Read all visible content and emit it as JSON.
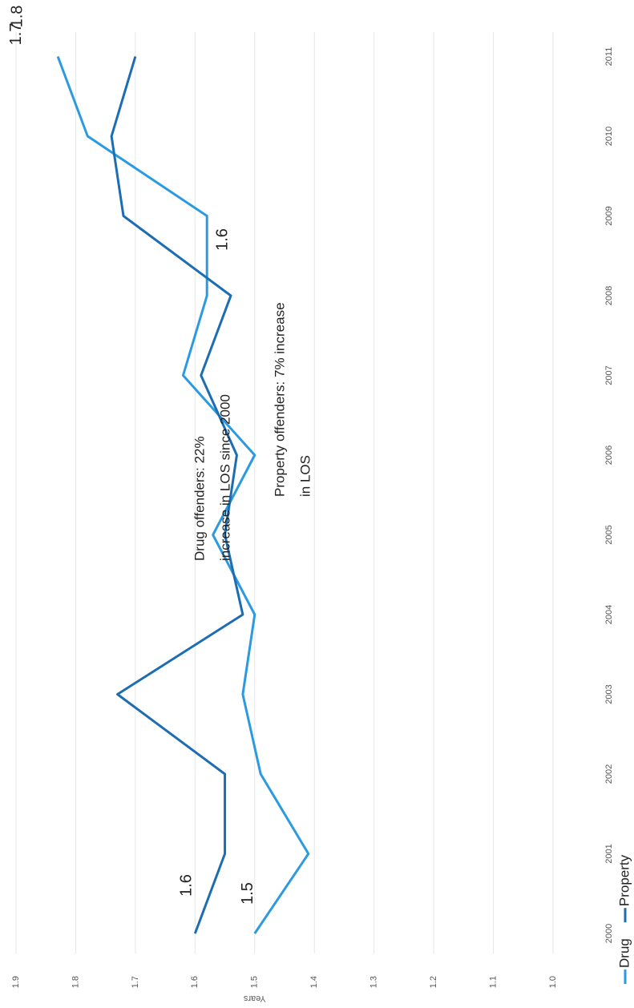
{
  "chart_data": {
    "type": "line",
    "y_label": "Years",
    "categories": [
      "2000",
      "2001",
      "2002",
      "2003",
      "2004",
      "2005",
      "2006",
      "2007",
      "2008",
      "2009",
      "2010",
      "2011"
    ],
    "series": [
      {
        "name": "Drug",
        "color": "#2b9ae0",
        "values": [
          1.5,
          1.41,
          1.49,
          1.52,
          1.5,
          1.57,
          1.5,
          1.62,
          1.58,
          1.58,
          1.78,
          1.83
        ],
        "value_labels": [
          "1.5",
          null,
          null,
          null,
          null,
          null,
          null,
          null,
          "1.6",
          null,
          null,
          "1.8"
        ]
      },
      {
        "name": "Property",
        "color": "#1d6db3",
        "values": [
          1.6,
          1.55,
          1.55,
          1.73,
          1.52,
          1.55,
          1.53,
          1.59,
          1.54,
          1.72,
          1.74,
          1.7
        ],
        "value_labels": [
          "1.6",
          null,
          null,
          null,
          null,
          null,
          null,
          null,
          null,
          null,
          null,
          "1.7"
        ]
      }
    ],
    "ylim": [
      1.0,
      1.9
    ],
    "yticks": [
      {
        "value": 1,
        "label": "1.0"
      },
      1.1,
      1.2,
      1.3,
      1.4,
      1.5,
      1.6,
      1.7,
      1.8,
      1.9
    ],
    "grid": true,
    "legend": "bottom",
    "annotations": [
      {
        "lines": [
          "Drug offenders:  22%",
          "increase in LOS since 2000"
        ]
      },
      {
        "lines": [
          "Property offenders: 7% increase",
          "in LOS"
        ]
      }
    ]
  }
}
